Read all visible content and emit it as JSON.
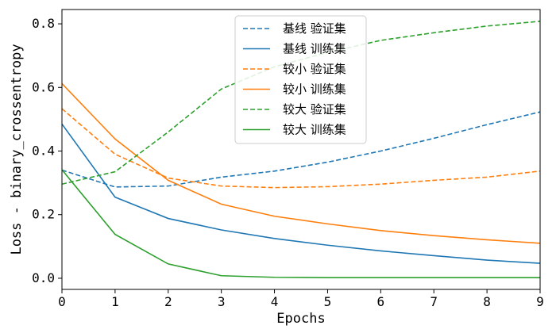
{
  "chart_data": {
    "type": "line",
    "xlabel": "Epochs",
    "ylabel": "Loss - binary_crossentropy",
    "xlim": [
      0,
      9
    ],
    "ylim": [
      -0.035,
      0.845
    ],
    "xticks": [
      "0",
      "1",
      "2",
      "3",
      "4",
      "5",
      "6",
      "7",
      "8",
      "9"
    ],
    "yticks": [
      "0.0",
      "0.2",
      "0.4",
      "0.6",
      "0.8"
    ],
    "legend_position": "upper-center",
    "grid": false,
    "x": [
      0,
      1,
      2,
      3,
      4,
      5,
      6,
      7,
      8,
      9
    ],
    "series": [
      {
        "name": "基线 验证集",
        "style": "dashed",
        "color": "#1f77b4",
        "values": [
          0.34,
          0.287,
          0.29,
          0.318,
          0.337,
          0.365,
          0.4,
          0.44,
          0.483,
          0.523
        ]
      },
      {
        "name": "基线 训练集",
        "style": "solid",
        "color": "#1f77b4",
        "values": [
          0.485,
          0.255,
          0.188,
          0.152,
          0.125,
          0.104,
          0.086,
          0.071,
          0.057,
          0.047
        ]
      },
      {
        "name": "较小 验证集",
        "style": "dashed",
        "color": "#ff7f0e",
        "values": [
          0.533,
          0.39,
          0.315,
          0.29,
          0.285,
          0.288,
          0.296,
          0.308,
          0.318,
          0.337
        ]
      },
      {
        "name": "较小 训练集",
        "style": "solid",
        "color": "#ff7f0e",
        "values": [
          0.612,
          0.438,
          0.308,
          0.233,
          0.195,
          0.171,
          0.15,
          0.134,
          0.121,
          0.11
        ]
      },
      {
        "name": "较大 验证集",
        "style": "dashed",
        "color": "#2ca02c",
        "values": [
          0.296,
          0.335,
          0.46,
          0.595,
          0.665,
          0.71,
          0.748,
          0.772,
          0.793,
          0.808
        ]
      },
      {
        "name": "较大 训练集",
        "style": "solid",
        "color": "#2ca02c",
        "values": [
          0.341,
          0.138,
          0.045,
          0.008,
          0.003,
          0.002,
          0.002,
          0.002,
          0.002,
          0.002
        ]
      }
    ]
  }
}
